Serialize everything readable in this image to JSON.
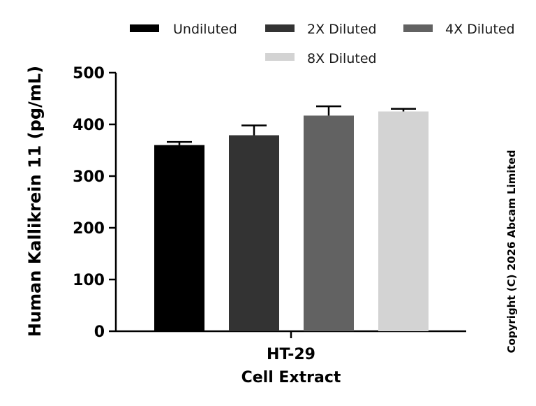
{
  "chart_data": {
    "type": "bar",
    "categories": [
      "HT-29 Cell Extract"
    ],
    "category_lines": [
      "HT-29",
      "Cell Extract"
    ],
    "ylabel": "Human Kallikrein 11 (pg/mL)",
    "ylim": [
      0,
      500
    ],
    "yticks": [
      0,
      100,
      200,
      300,
      400,
      500
    ],
    "grid": false,
    "legend_placement": "top",
    "series": [
      {
        "name": "Undiluted",
        "values": [
          360
        ],
        "error": [
          6
        ],
        "color": "#000000"
      },
      {
        "name": "2X Diluted",
        "values": [
          379
        ],
        "error": [
          19
        ],
        "color": "#333333"
      },
      {
        "name": "4X Diluted",
        "values": [
          417
        ],
        "error": [
          18
        ],
        "color": "#626262"
      },
      {
        "name": "8X Diluted",
        "values": [
          425
        ],
        "error": [
          5
        ],
        "color": "#d3d3d3"
      }
    ]
  },
  "copyright": "Copyright (C) 2026 Abcam Limited"
}
